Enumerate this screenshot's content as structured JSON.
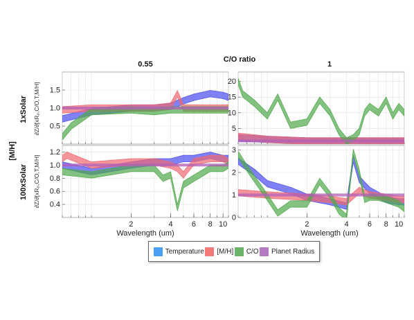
{
  "figure": {
    "super_title": "C/O ratio",
    "row_group_label": "[M/H]",
    "col_titles": [
      "0.55",
      "1"
    ],
    "row_titles": [
      "1xSolar",
      "100xSolar"
    ],
    "xlabel": "Wavelength (um)",
    "ylabel": "∂Z/∂[xRₚ,C/O,T,M/H]"
  },
  "colors": {
    "Temperature": "#4a4cf0",
    "[M/H]": "#f06870",
    "C/O": "#4fa84a",
    "Planet Radius": "#b35fb8"
  },
  "legend": {
    "items": [
      {
        "label": "Temperature",
        "color": "#4a9ff5"
      },
      {
        "label": "[M/H]",
        "color": "#f47a7a"
      },
      {
        "label": "C/O",
        "color": "#6cb46a"
      },
      {
        "label": "Planet Radius",
        "color": "#b37ac0"
      }
    ]
  },
  "chart_data": [
    {
      "type": "area",
      "row": "1xSolar",
      "col": "0.55",
      "xscale": "log",
      "xlim": [
        0.6,
        11
      ],
      "ylim": [
        0,
        2
      ],
      "yticks": [
        0.5,
        1.0,
        1.5
      ],
      "xticks": [
        2,
        4,
        6,
        8,
        10
      ],
      "series": [
        {
          "name": "Temperature",
          "x": [
            0.6,
            1,
            2,
            3,
            4,
            5,
            6,
            8,
            10,
            11
          ],
          "y": [
            0.7,
            0.9,
            1.0,
            1.0,
            1.05,
            1.2,
            1.3,
            1.4,
            1.35,
            1.3
          ]
        },
        {
          "name": "[M/H]",
          "x": [
            0.6,
            1,
            2,
            3,
            4,
            4.5,
            5,
            6,
            8,
            10,
            11
          ],
          "y": [
            0.95,
            1.0,
            1.0,
            1.0,
            1.05,
            1.4,
            1.0,
            1.0,
            1.0,
            1.0,
            1.0
          ]
        },
        {
          "name": "C/O",
          "x": [
            0.6,
            0.7,
            1,
            2,
            3,
            4,
            5,
            6,
            8,
            10,
            11
          ],
          "y": [
            0.2,
            0.5,
            0.9,
            0.95,
            0.9,
            0.95,
            0.95,
            0.95,
            0.95,
            0.95,
            0.95
          ]
        },
        {
          "name": "Planet Radius",
          "x": [
            0.6,
            1,
            2,
            4,
            8,
            11
          ],
          "y": [
            1.0,
            1.0,
            1.0,
            1.0,
            1.0,
            1.0
          ]
        }
      ]
    },
    {
      "type": "area",
      "row": "1xSolar",
      "col": "1",
      "xscale": "log",
      "xlim": [
        0.6,
        11
      ],
      "ylim": [
        0,
        23
      ],
      "yticks": [
        5,
        10,
        15,
        20
      ],
      "xticks": [
        2,
        4,
        6,
        8,
        10
      ],
      "series": [
        {
          "name": "Temperature",
          "x": [
            0.6,
            1,
            2,
            3,
            4,
            6,
            8,
            11
          ],
          "y": [
            2,
            1.5,
            1,
            1,
            1,
            1,
            1,
            1
          ]
        },
        {
          "name": "[M/H]",
          "x": [
            0.6,
            1,
            2,
            4,
            6,
            8,
            11
          ],
          "y": [
            2.5,
            1.5,
            1,
            1,
            1,
            1,
            1
          ]
        },
        {
          "name": "C/O",
          "x": [
            0.6,
            0.65,
            0.8,
            1,
            1.2,
            1.5,
            2,
            2.5,
            3,
            3.5,
            4,
            4.5,
            5,
            5.5,
            6,
            7,
            8,
            9,
            10,
            11
          ],
          "y": [
            20,
            16,
            13,
            9,
            15,
            6,
            7,
            14,
            10,
            4,
            1,
            2,
            4,
            10,
            12,
            10,
            14,
            9,
            12,
            10
          ]
        },
        {
          "name": "Planet Radius",
          "x": [
            0.6,
            1,
            2,
            4,
            8,
            11
          ],
          "y": [
            1,
            1,
            1,
            1,
            1,
            1
          ]
        }
      ]
    },
    {
      "type": "area",
      "row": "100xSolar",
      "col": "0.55",
      "xscale": "log",
      "xlim": [
        0.6,
        11
      ],
      "ylim": [
        0.2,
        1.3
      ],
      "yticks": [
        0.4,
        0.6,
        0.8,
        1.0,
        1.2
      ],
      "xticks": [
        2,
        4,
        6,
        8,
        10
      ],
      "series": [
        {
          "name": "Temperature",
          "x": [
            0.6,
            1,
            2,
            3,
            4,
            5,
            6,
            8,
            10,
            11
          ],
          "y": [
            1.0,
            0.9,
            1.0,
            1.05,
            1.05,
            1.1,
            1.1,
            1.15,
            1.1,
            1.1
          ]
        },
        {
          "name": "[M/H]",
          "x": [
            0.6,
            0.65,
            1,
            2,
            3,
            4,
            4.5,
            5,
            6,
            8,
            10,
            11
          ],
          "y": [
            1.1,
            1.15,
            1.0,
            1.05,
            1.05,
            1.0,
            0.95,
            0.85,
            1.05,
            1.1,
            1.1,
            1.05
          ]
        },
        {
          "name": "C/O",
          "x": [
            0.6,
            1,
            2,
            3,
            3.5,
            4,
            4.5,
            5,
            6,
            8,
            10,
            11
          ],
          "y": [
            0.9,
            0.85,
            0.95,
            0.95,
            0.8,
            0.85,
            0.35,
            0.7,
            0.8,
            0.95,
            0.95,
            1.0
          ]
        },
        {
          "name": "Planet Radius",
          "x": [
            0.6,
            1,
            2,
            4,
            8,
            11
          ],
          "y": [
            1.0,
            1.0,
            1.0,
            1.0,
            1.0,
            1.0
          ]
        }
      ]
    },
    {
      "type": "area",
      "row": "100xSolar",
      "col": "1",
      "xscale": "log",
      "xlim": [
        0.6,
        11
      ],
      "ylim": [
        0,
        3.2
      ],
      "yticks": [
        0,
        1,
        2,
        3
      ],
      "xticks": [
        2,
        4,
        6,
        8,
        10
      ],
      "series": [
        {
          "name": "Temperature",
          "x": [
            0.6,
            0.8,
            1,
            1.5,
            2,
            3,
            4,
            4.5,
            5,
            6,
            8,
            10,
            11
          ],
          "y": [
            2.5,
            2.0,
            1.5,
            1.2,
            0.9,
            0.7,
            0.5,
            2.6,
            1.7,
            1.2,
            0.8,
            0.7,
            0.7
          ]
        },
        {
          "name": "[M/H]",
          "x": [
            0.6,
            1,
            2,
            3,
            4,
            5,
            6,
            8,
            10,
            11
          ],
          "y": [
            1.1,
            1.0,
            0.9,
            0.8,
            0.7,
            1.2,
            1.0,
            0.9,
            0.8,
            0.8
          ]
        },
        {
          "name": "C/O",
          "x": [
            0.6,
            0.7,
            1,
            1.2,
            1.5,
            2,
            2.5,
            3,
            3.5,
            4,
            4.5,
            5,
            5.5,
            6,
            7,
            8,
            10,
            11
          ],
          "y": [
            2.8,
            2.2,
            0.9,
            0.2,
            0.6,
            0.6,
            1.6,
            1.0,
            0.3,
            0.0,
            2.9,
            2.0,
            0.8,
            0.9,
            0.9,
            0.8,
            0.6,
            0.4
          ]
        },
        {
          "name": "Planet Radius",
          "x": [
            0.6,
            1,
            2,
            4,
            8,
            11
          ],
          "y": [
            1.0,
            1.0,
            1.0,
            1.0,
            1.0,
            1.0
          ]
        }
      ]
    }
  ]
}
